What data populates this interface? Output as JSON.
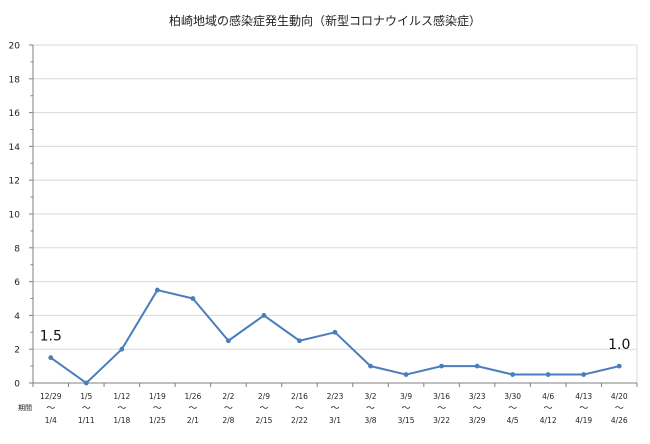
{
  "chart_data": {
    "type": "line",
    "title": "柏崎地域の感染症発生動向（新型コロナウイルス感染症）",
    "period_label": "期間",
    "x_start": [
      "12/29",
      "1/5",
      "1/12",
      "1/19",
      "1/26",
      "2/2",
      "2/9",
      "2/16",
      "2/23",
      "3/2",
      "3/9",
      "3/16",
      "3/23",
      "3/30",
      "4/6",
      "4/13",
      "4/20"
    ],
    "x_end": [
      "1/4",
      "1/11",
      "1/18",
      "1/25",
      "2/1",
      "2/8",
      "2/15",
      "2/22",
      "3/1",
      "3/8",
      "3/15",
      "3/22",
      "3/29",
      "4/5",
      "4/12",
      "4/19",
      "4/26"
    ],
    "tilde": "～",
    "series": [
      {
        "values": [
          1.5,
          0,
          2,
          5.5,
          5,
          2.5,
          4,
          2.5,
          3,
          1,
          0.5,
          1,
          1,
          0.5,
          0.5,
          0.5,
          1
        ]
      }
    ],
    "annotations": [
      {
        "index": 0,
        "text": "1.5"
      },
      {
        "index": 16,
        "text": "1.0"
      }
    ],
    "ylim": [
      0,
      20
    ],
    "yticks": [
      0,
      2,
      4,
      6,
      8,
      10,
      12,
      14,
      16,
      18,
      20
    ],
    "grid": true,
    "line_color": "#4a7ebb",
    "grid_color": "#d9d9d9",
    "axis_color": "#808080"
  }
}
